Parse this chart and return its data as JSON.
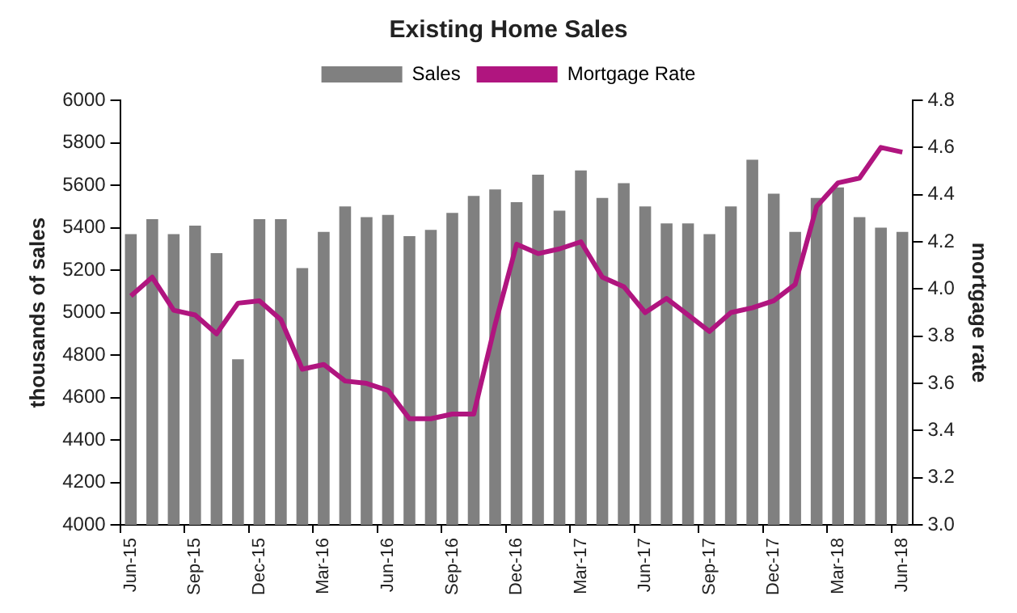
{
  "chart_data": {
    "type": "bar",
    "title": "Existing Home Sales",
    "ylabel": "thousands of sales",
    "y2label": "mortgage rate",
    "categories": [
      "Jun-15",
      null,
      null,
      "Sep-15",
      null,
      null,
      "Dec-15",
      null,
      null,
      "Mar-16",
      null,
      null,
      "Jun-16",
      null,
      null,
      "Sep-16",
      null,
      null,
      "Dec-16",
      null,
      null,
      "Mar-17",
      null,
      null,
      "Jun-17",
      null,
      null,
      "Sep-17",
      null,
      null,
      "Dec-17",
      null,
      null,
      "Mar-18",
      null,
      null,
      "Jun-18"
    ],
    "series": [
      {
        "name": "Sales",
        "color": "#808080",
        "values": [
          5370,
          5440,
          5370,
          5410,
          5280,
          4780,
          5440,
          5440,
          5210,
          5380,
          5500,
          5450,
          5460,
          5360,
          5390,
          5470,
          5550,
          5580,
          5520,
          5650,
          5480,
          5670,
          5540,
          5610,
          5500,
          5420,
          5420,
          5370,
          5500,
          5720,
          5560,
          5380,
          5540,
          5590,
          5450,
          5400,
          5380
        ]
      },
      {
        "name": "Mortgage Rate",
        "type": "line",
        "axis": "y2",
        "color": "#b0157f",
        "values": [
          3.97,
          4.05,
          3.91,
          3.89,
          3.81,
          3.94,
          3.95,
          3.87,
          3.66,
          3.68,
          3.61,
          3.6,
          3.57,
          3.45,
          3.45,
          3.47,
          3.47,
          3.85,
          4.19,
          4.15,
          4.17,
          4.2,
          4.05,
          4.01,
          3.9,
          3.96,
          3.89,
          3.82,
          3.9,
          3.92,
          3.95,
          4.02,
          4.35,
          4.45,
          4.47,
          4.6,
          4.58
        ]
      }
    ],
    "ylim": [
      4000,
      6000
    ],
    "yticks": [
      4000,
      4200,
      4400,
      4600,
      4800,
      5000,
      5200,
      5400,
      5600,
      5800,
      6000
    ],
    "y2lim": [
      3,
      4.8
    ],
    "y2ticks": [
      {
        "value": 3,
        "label": "3.0"
      },
      3.2,
      3.4,
      3.6,
      3.8,
      {
        "value": 4,
        "label": "4.0"
      },
      4.2,
      4.4,
      4.6,
      4.8
    ],
    "legend": "top",
    "grid": false,
    "marker": "none",
    "line_style": "solid"
  }
}
